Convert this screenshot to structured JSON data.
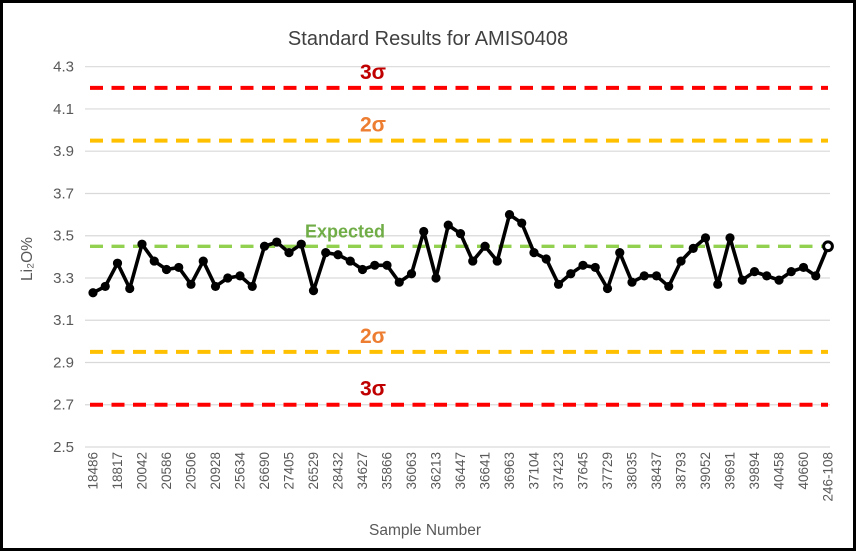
{
  "chart_data": {
    "type": "line",
    "title": "Standard Results for AMIS0408",
    "xlabel": "Sample Number",
    "ylabel": "Li₂O%",
    "ylim": [
      2.5,
      4.3
    ],
    "yticks": [
      4.3,
      4.1,
      3.9,
      3.7,
      3.5,
      3.3,
      3.1,
      2.9,
      2.7,
      2.5
    ],
    "grid": "horizontal",
    "legend": "none",
    "categories": [
      "18486",
      "18817",
      "20042",
      "20586",
      "20506",
      "20928",
      "25634",
      "26690",
      "27405",
      "26529",
      "28432",
      "34627",
      "35866",
      "36063",
      "36213",
      "36447",
      "36641",
      "36963",
      "37104",
      "37423",
      "37645",
      "37729",
      "38035",
      "38437",
      "38793",
      "39052",
      "39691",
      "39894",
      "40458",
      "40660",
      "246-108"
    ],
    "label_every_nth_point": 2,
    "series": [
      {
        "color": "#000000",
        "marker": "filled-circle",
        "last_point_marker": "open-circle",
        "values": [
          3.23,
          3.26,
          3.37,
          3.25,
          3.46,
          3.38,
          3.34,
          3.35,
          3.27,
          3.38,
          3.26,
          3.3,
          3.31,
          3.26,
          3.45,
          3.47,
          3.42,
          3.46,
          3.24,
          3.42,
          3.41,
          3.38,
          3.34,
          3.36,
          3.36,
          3.28,
          3.32,
          3.52,
          3.3,
          3.55,
          3.51,
          3.38,
          3.45,
          3.38,
          3.6,
          3.56,
          3.42,
          3.39,
          3.27,
          3.32,
          3.36,
          3.35,
          3.25,
          3.42,
          3.28,
          3.31,
          3.31,
          3.26,
          3.38,
          3.44,
          3.49,
          3.27,
          3.49,
          3.29,
          3.33,
          3.31,
          3.29,
          3.33,
          3.35,
          3.31,
          3.45
        ]
      }
    ],
    "control_lines": [
      {
        "label": "3σ",
        "value": 4.2,
        "line_color": "#FF0000",
        "label_color": "#C00000",
        "style": "dashed"
      },
      {
        "label": "2σ",
        "value": 3.95,
        "line_color": "#FFC000",
        "label_color": "#ED7D31",
        "style": "dashed"
      },
      {
        "label": "Expected",
        "value": 3.45,
        "line_color": "#92D050",
        "label_color": "#70AD47",
        "style": "dashed"
      },
      {
        "label": "2σ",
        "value": 2.95,
        "line_color": "#FFC000",
        "label_color": "#ED7D31",
        "style": "dashed"
      },
      {
        "label": "3σ",
        "value": 2.7,
        "line_color": "#FF0000",
        "label_color": "#C00000",
        "style": "dashed"
      }
    ]
  },
  "colors": {
    "gridline": "#D9D9D9",
    "axis_text": "#595959",
    "title_text": "#404040",
    "series": "#000000",
    "background": "#FFFFFF",
    "border": "#000000"
  }
}
